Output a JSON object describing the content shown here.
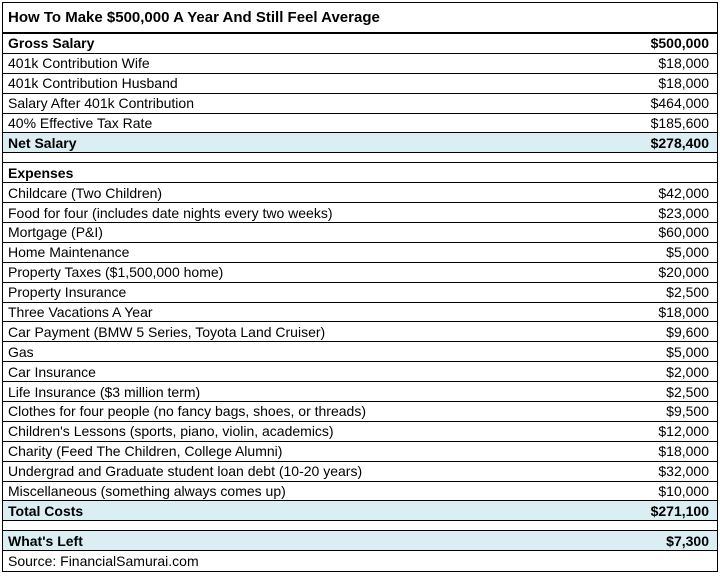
{
  "title": "How To Make $500,000 A Year And Still Feel Average",
  "income": [
    {
      "label": "Gross Salary",
      "value": "$500,000",
      "bold": true
    },
    {
      "label": "401k Contribution Wife",
      "value": "$18,000"
    },
    {
      "label": "401k Contribution Husband",
      "value": "$18,000"
    },
    {
      "label": "Salary After 401k Contribution",
      "value": "$464,000"
    },
    {
      "label": "40% Effective Tax Rate",
      "value": "$185,600"
    },
    {
      "label": "Net Salary",
      "value": "$278,400",
      "bold": true,
      "highlight": true
    }
  ],
  "expenses_header": "Expenses",
  "expenses": [
    {
      "label": "Childcare (Two Children)",
      "value": "$42,000"
    },
    {
      "label": "Food for four (includes date nights every two weeks)",
      "value": "$23,000"
    },
    {
      "label": "Mortgage (P&I)",
      "value": "$60,000"
    },
    {
      "label": "Home Maintenance",
      "value": "$5,000"
    },
    {
      "label": "Property Taxes ($1,500,000 home)",
      "value": "$20,000"
    },
    {
      "label": "Property Insurance",
      "value": "$2,500"
    },
    {
      "label": "Three Vacations A Year",
      "value": "$18,000"
    },
    {
      "label": "Car Payment (BMW 5 Series, Toyota Land Cruiser)",
      "value": "$9,600"
    },
    {
      "label": "Gas",
      "value": "$5,000"
    },
    {
      "label": "Car Insurance",
      "value": "$2,000"
    },
    {
      "label": "Life Insurance ($3 million term)",
      "value": "$2,500"
    },
    {
      "label": "Clothes for four people (no fancy bags, shoes, or threads)",
      "value": "$9,500"
    },
    {
      "label": "Children's Lessons (sports, piano, violin, academics)",
      "value": "$12,000"
    },
    {
      "label": "Charity (Feed The Children, College Alumni)",
      "value": "$18,000"
    },
    {
      "label": "Undergrad and Graduate student loan debt (10-20 years)",
      "value": "$32,000"
    },
    {
      "label": "Miscellaneous (something always comes up)",
      "value": "$10,000"
    }
  ],
  "total_costs": {
    "label": "Total Costs",
    "value": "$271,100"
  },
  "whats_left": {
    "label": "What's Left",
    "value": "$7,300"
  },
  "source": "Source: FinancialSamurai.com",
  "colors": {
    "highlight": "#daeef3",
    "border": "#000000"
  }
}
